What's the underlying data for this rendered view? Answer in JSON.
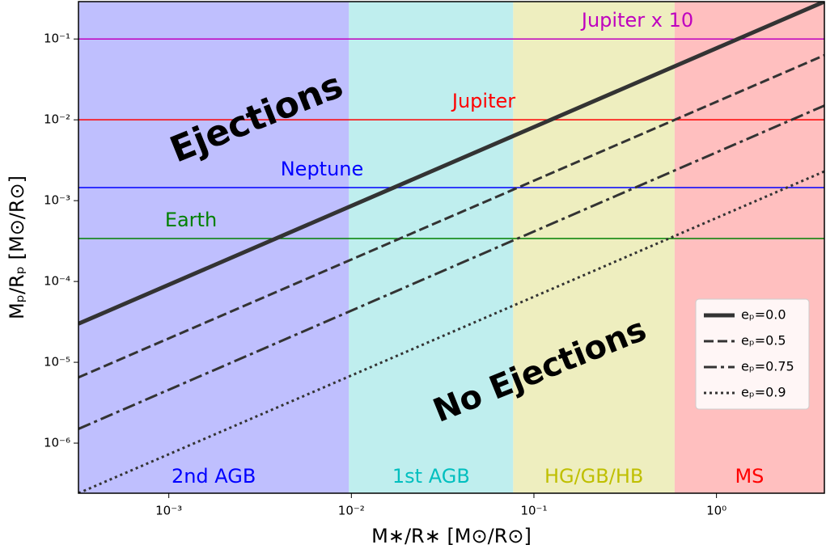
{
  "chart_data": {
    "type": "line",
    "xlabel": "M∗/R∗ [M⊙/R⊙]",
    "ylabel": "Mₚ/Rₚ [M⊙/R⊙]",
    "xscale": "log",
    "yscale": "log",
    "xlim": [
      0.00032,
      3.9
    ],
    "ylim": [
      2.4e-07,
      0.29
    ],
    "xticks": [
      {
        "value": 0.001,
        "label": "10⁻³"
      },
      {
        "value": 0.01,
        "label": "10⁻²"
      },
      {
        "value": 0.1,
        "label": "10⁻¹"
      },
      {
        "value": 1,
        "label": "10⁰"
      }
    ],
    "yticks": [
      {
        "value": 1e-06,
        "label": "10⁻⁶"
      },
      {
        "value": 1e-05,
        "label": "10⁻⁵"
      },
      {
        "value": 0.0001,
        "label": "10⁻⁴"
      },
      {
        "value": 0.001,
        "label": "10⁻³"
      },
      {
        "value": 0.01,
        "label": "10⁻²"
      },
      {
        "value": 0.1,
        "label": "10⁻¹"
      }
    ],
    "regions": [
      {
        "label": "2nd AGB",
        "range": [
          0.00032,
          0.0097
        ],
        "color": "#bfbffe",
        "label_color": "#0000ff"
      },
      {
        "label": "1st AGB",
        "range": [
          0.0097,
          0.077
        ],
        "color": "#bfeeee",
        "label_color": "#00bfbf"
      },
      {
        "label": "HG/GB/HB",
        "range": [
          0.077,
          0.59
        ],
        "color": "#eeeebf",
        "label_color": "#bfbf00"
      },
      {
        "label": "MS",
        "range": [
          0.59,
          3.9
        ],
        "color": "#ffbfbf",
        "label_color": "#ff0000"
      }
    ],
    "hlines": [
      {
        "label": "Jupiter x 10",
        "value": 0.1,
        "color": "#bf00bf"
      },
      {
        "label": "Jupiter",
        "value": 0.01,
        "color": "#ff0000"
      },
      {
        "label": "Neptune",
        "value": 0.00145,
        "color": "#0000ff"
      },
      {
        "label": "Earth",
        "value": 0.00034,
        "color": "#008000"
      }
    ],
    "x": [
      0.00032,
      3.9
    ],
    "series": [
      {
        "name": "eₚ=0.0",
        "color": "#333333",
        "dash": "solid",
        "values": [
          3e-05,
          0.29
        ]
      },
      {
        "name": "eₚ=0.5",
        "color": "#333333",
        "dash": "dashed",
        "values": [
          6.5e-06,
          0.063
        ]
      },
      {
        "name": "eₚ=0.75",
        "color": "#333333",
        "dash": "dashdot",
        "values": [
          1.5e-06,
          0.015
        ]
      },
      {
        "name": "eₚ=0.9",
        "color": "#333333",
        "dash": "dotted",
        "values": [
          2.4e-07,
          0.0023
        ]
      }
    ],
    "annotations": [
      "Ejections",
      "No Ejections"
    ],
    "legend": "center right"
  }
}
